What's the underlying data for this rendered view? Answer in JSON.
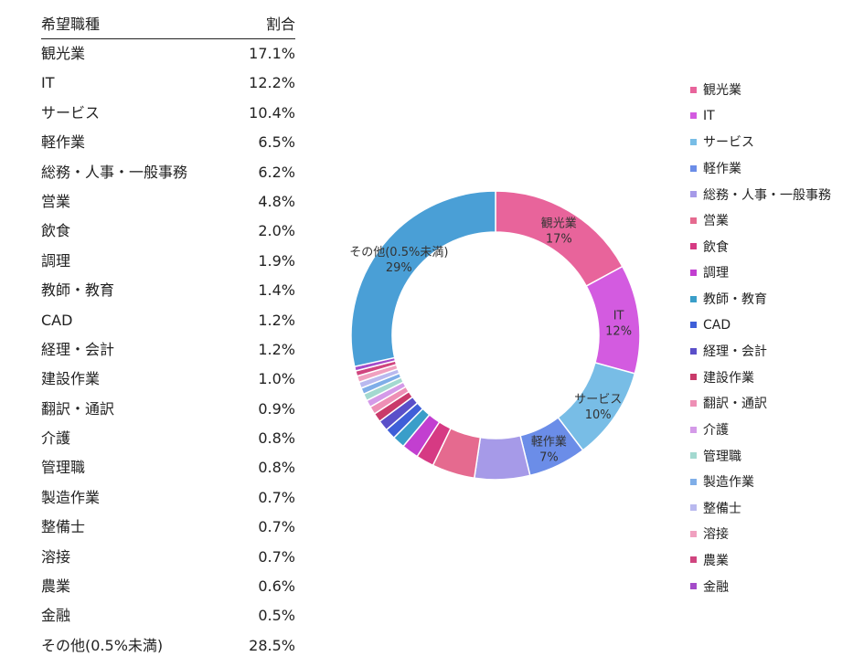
{
  "table": {
    "header_category": "希望職種",
    "header_value": "割合",
    "rows": [
      {
        "name": "観光業",
        "value": "17.1%"
      },
      {
        "name": "IT",
        "value": "12.2%"
      },
      {
        "name": "サービス",
        "value": "10.4%"
      },
      {
        "name": "軽作業",
        "value": "6.5%"
      },
      {
        "name": "総務・人事・一般事務",
        "value": "6.2%"
      },
      {
        "name": "営業",
        "value": "4.8%"
      },
      {
        "name": "飲食",
        "value": "2.0%"
      },
      {
        "name": "調理",
        "value": "1.9%"
      },
      {
        "name": "教師・教育",
        "value": "1.4%"
      },
      {
        "name": "CAD",
        "value": "1.2%"
      },
      {
        "name": "経理・会計",
        "value": "1.2%"
      },
      {
        "name": "建設作業",
        "value": "1.0%"
      },
      {
        "name": "翻訳・通訳",
        "value": "0.9%"
      },
      {
        "name": "介護",
        "value": "0.8%"
      },
      {
        "name": "管理職",
        "value": "0.8%"
      },
      {
        "name": "製造作業",
        "value": "0.7%"
      },
      {
        "name": "整備士",
        "value": "0.7%"
      },
      {
        "name": "溶接",
        "value": "0.7%"
      },
      {
        "name": "農業",
        "value": "0.6%"
      },
      {
        "name": "金融",
        "value": "0.5%"
      },
      {
        "name": "その他(0.5%未満)",
        "value": "28.5%"
      }
    ]
  },
  "chart_data": {
    "type": "pie",
    "style": "donut",
    "categories": [
      "観光業",
      "IT",
      "サービス",
      "軽作業",
      "総務・人事・一般事務",
      "営業",
      "飲食",
      "調理",
      "教師・教育",
      "CAD",
      "経理・会計",
      "建設作業",
      "翻訳・通訳",
      "介護",
      "管理職",
      "製造作業",
      "整備士",
      "溶接",
      "農業",
      "金融",
      "その他(0.5%未満)"
    ],
    "values": [
      17.1,
      12.2,
      10.4,
      6.5,
      6.2,
      4.8,
      2.0,
      1.9,
      1.4,
      1.2,
      1.2,
      1.0,
      0.9,
      0.8,
      0.8,
      0.7,
      0.7,
      0.7,
      0.6,
      0.5,
      28.5
    ],
    "colors": [
      "#e8649b",
      "#d35be0",
      "#78bde6",
      "#6b8de8",
      "#a69ae8",
      "#e56a8f",
      "#d63a83",
      "#c23fd0",
      "#3a9ec9",
      "#3f5fd8",
      "#5a4fc9",
      "#c93a6a",
      "#ee8fb5",
      "#d49ae8",
      "#a3d9d0",
      "#7faee8",
      "#b9b9ef",
      "#f0a0bf",
      "#d0457f",
      "#a44bc9",
      "#4a9fd6"
    ],
    "slice_labels": [
      {
        "name": "観光業",
        "pct": "17%"
      },
      {
        "name": "IT",
        "pct": "12%"
      },
      {
        "name": "サービス",
        "pct": "10%"
      },
      {
        "name": "軽作業",
        "pct": "7%"
      },
      {
        "name": "その他(0.5%未満)",
        "pct": "29%"
      }
    ],
    "legend": [
      "観光業",
      "IT",
      "サービス",
      "軽作業",
      "総務・人事・一般事務",
      "営業",
      "飲食",
      "調理",
      "教師・教育",
      "CAD",
      "経理・会計",
      "建設作業",
      "翻訳・通訳",
      "介護",
      "管理職",
      "製造作業",
      "整備士",
      "溶接",
      "農業",
      "金融"
    ],
    "legend_placement": "right"
  }
}
